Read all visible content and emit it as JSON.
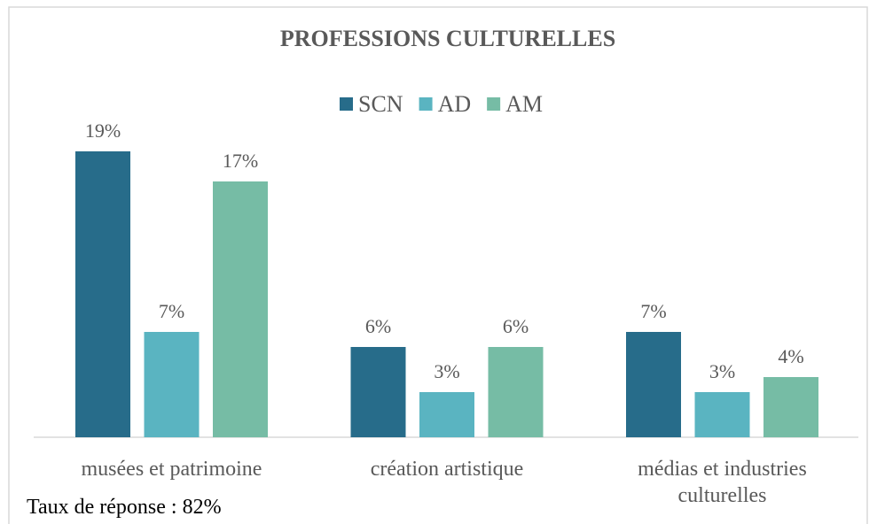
{
  "chart_data": {
    "type": "bar",
    "title": "PROFESSIONS CULTURELLES",
    "categories": [
      "musées et patrimoine",
      "création artistique",
      "médias et industries culturelles"
    ],
    "series": [
      {
        "name": "SCN",
        "color": "#276c8a",
        "values": [
          19,
          6,
          7
        ],
        "value_labels": [
          "19%",
          "6%",
          "7%"
        ]
      },
      {
        "name": "AD",
        "color": "#5ab4c1",
        "values": [
          7,
          3,
          3
        ],
        "value_labels": [
          "7%",
          "3%",
          "3%"
        ]
      },
      {
        "name": "AM",
        "color": "#76bca5",
        "values": [
          17,
          6,
          4
        ],
        "value_labels": [
          "17%",
          "6%",
          "4%"
        ]
      }
    ],
    "annotation": "Taux de réponse : 82%"
  }
}
